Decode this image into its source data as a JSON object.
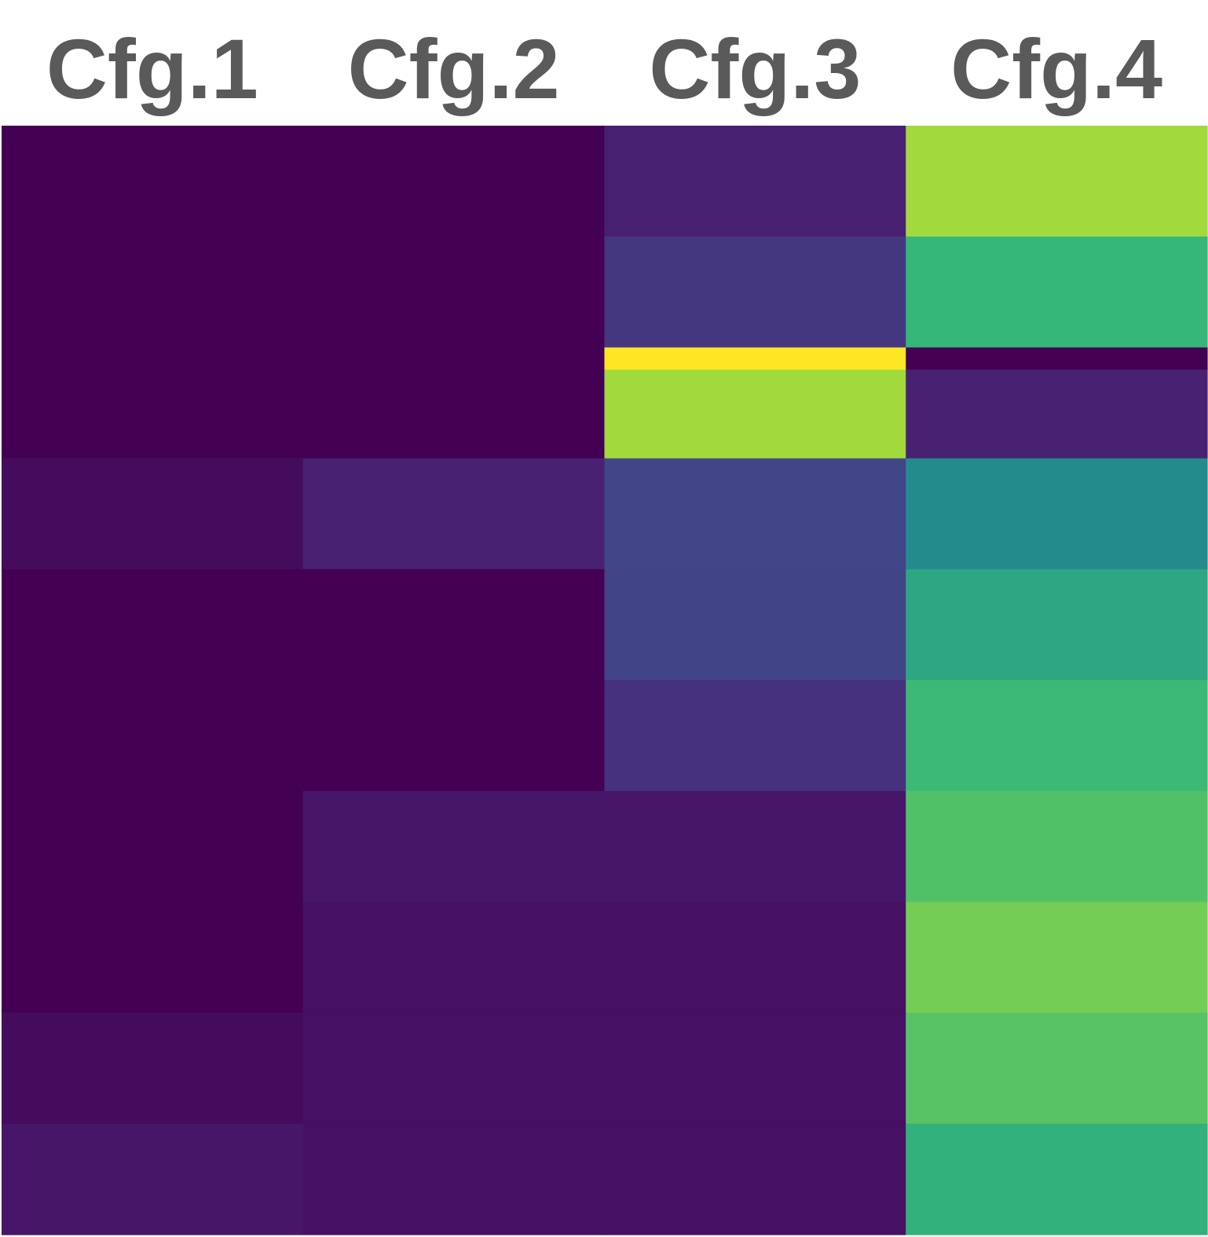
{
  "chart_data": {
    "type": "heatmap",
    "columns": [
      "Cfg.1",
      "Cfg.2",
      "Cfg.3",
      "Cfg.4"
    ],
    "colormap": "viridis",
    "rows": [
      {
        "weight": 1.0,
        "values": [
          0.0,
          0.0,
          0.12,
          0.9
        ]
      },
      {
        "weight": 1.0,
        "values": [
          0.0,
          0.0,
          0.2,
          0.75
        ]
      },
      {
        "weight": 0.2,
        "values": [
          0.0,
          0.0,
          1.0,
          0.0
        ]
      },
      {
        "weight": 0.8,
        "values": [
          0.0,
          0.0,
          0.9,
          0.12
        ]
      },
      {
        "weight": 1.0,
        "values": [
          0.04,
          0.12,
          0.26,
          0.6
        ]
      },
      {
        "weight": 1.0,
        "values": [
          0.0,
          0.0,
          0.25,
          0.7
        ]
      },
      {
        "weight": 1.0,
        "values": [
          0.0,
          0.0,
          0.18,
          0.76
        ]
      },
      {
        "weight": 1.0,
        "values": [
          0.0,
          0.08,
          0.08,
          0.79
        ]
      },
      {
        "weight": 1.0,
        "values": [
          0.0,
          0.06,
          0.06,
          0.84
        ]
      },
      {
        "weight": 1.0,
        "values": [
          0.04,
          0.06,
          0.06,
          0.8
        ]
      },
      {
        "weight": 1.0,
        "values": [
          0.08,
          0.06,
          0.06,
          0.73
        ]
      }
    ]
  }
}
